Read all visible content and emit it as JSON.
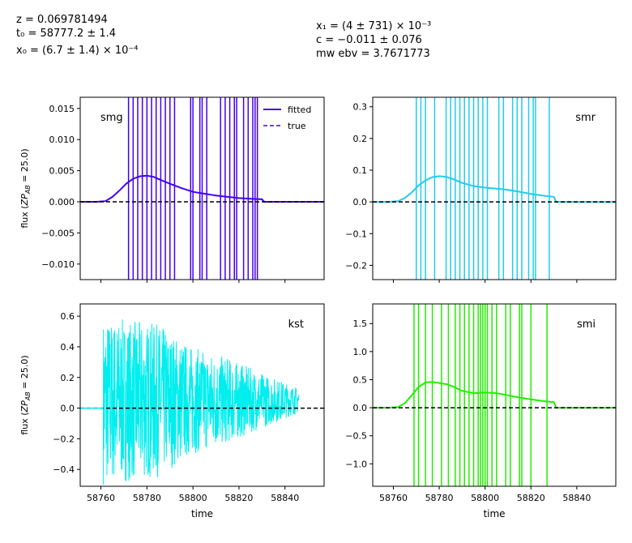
{
  "header": {
    "left": [
      "z = 0.069781494",
      "t₀ = 58777.2 ± 1.4",
      "x₀ = (6.7 ± 1.4) × 10⁻⁴"
    ],
    "right": [
      "x₁ = (4 ± 731) × 10⁻³",
      "c = −0.011 ± 0.076",
      "mw ebv = 3.7671773"
    ]
  },
  "chart_data": [
    {
      "type": "line",
      "band": "smg",
      "color": "#4400ee",
      "xlim": [
        58751,
        58857
      ],
      "ylim": [
        -0.0125,
        0.0168
      ],
      "xticks": [
        58760,
        58780,
        58800,
        58820,
        58840
      ],
      "yticks": [
        -0.01,
        -0.005,
        0.0,
        0.005,
        0.01,
        0.015
      ],
      "ytick_labels": [
        "−0.010",
        "−0.005",
        "0.000",
        "0.005",
        "0.010",
        "0.015"
      ],
      "ylabel": "flux (ZP_AB = 25.0)",
      "xlabel": "",
      "legend": [
        "fitted",
        "true"
      ],
      "legend_loc": "upper right",
      "band_label_loc": "upper left",
      "x_labels_shown": false,
      "model_x": [
        58751,
        58758,
        58762,
        58765,
        58768,
        58771,
        58774,
        58777,
        58780,
        58783,
        58786,
        58790,
        58795,
        58800,
        58805,
        58810,
        58815,
        58820,
        58825,
        58830,
        58831,
        58857
      ],
      "model_y": [
        0,
        0,
        0.0001,
        0.0008,
        0.0018,
        0.0029,
        0.0037,
        0.0041,
        0.0042,
        0.004,
        0.0035,
        0.0029,
        0.0022,
        0.0016,
        0.0013,
        0.001,
        0.0008,
        0.0006,
        0.0005,
        0.0004,
        0,
        0
      ],
      "error_bars_x": [
        58772,
        58774,
        58776,
        58778,
        58780,
        58782,
        58784,
        58786,
        58788,
        58790,
        58792,
        58799,
        58800,
        58803,
        58804,
        58806,
        58812,
        58814,
        58816,
        58818,
        58819,
        58822,
        58824,
        58826,
        58827,
        58828
      ]
    },
    {
      "type": "line",
      "band": "smr",
      "color": "#22ccee",
      "xlim": [
        58751,
        58857
      ],
      "ylim": [
        -0.245,
        0.33
      ],
      "xticks": [
        58760,
        58780,
        58800,
        58820,
        58840
      ],
      "yticks": [
        -0.2,
        -0.1,
        0.0,
        0.1,
        0.2,
        0.3
      ],
      "ytick_labels": [
        "−0.2",
        "−0.1",
        "0.0",
        "0.1",
        "0.2",
        "0.3"
      ],
      "ylabel": "",
      "xlabel": "",
      "band_label_loc": "upper right",
      "x_labels_shown": false,
      "model_x": [
        58751,
        58758,
        58762,
        58765,
        58768,
        58771,
        58774,
        58777,
        58780,
        58783,
        58786,
        58790,
        58795,
        58800,
        58805,
        58810,
        58815,
        58820,
        58825,
        58830,
        58831,
        58857
      ],
      "model_y": [
        0,
        0,
        0.002,
        0.012,
        0.03,
        0.052,
        0.068,
        0.078,
        0.081,
        0.079,
        0.072,
        0.06,
        0.05,
        0.045,
        0.042,
        0.038,
        0.032,
        0.025,
        0.02,
        0.016,
        0,
        0
      ],
      "error_bars_x": [
        58770,
        58772,
        58774,
        58778,
        58783,
        58785,
        58787,
        58789,
        58791,
        58793,
        58795,
        58797,
        58799,
        58801,
        58806,
        58808,
        58812,
        58814,
        58816,
        58819,
        58821,
        58822,
        58828
      ]
    },
    {
      "type": "line",
      "band": "kst",
      "color": "#00eeee",
      "xlim": [
        58751,
        58857
      ],
      "ylim": [
        -0.51,
        0.68
      ],
      "xticks": [
        58760,
        58780,
        58800,
        58820,
        58840
      ],
      "yticks": [
        -0.4,
        -0.2,
        0.0,
        0.2,
        0.4,
        0.6
      ],
      "ytick_labels": [
        "−0.4",
        "−0.2",
        "0.0",
        "0.2",
        "0.4",
        "0.6"
      ],
      "ylabel": "flux (ZP_AB = 25.0)",
      "xlabel": "time",
      "band_label_loc": "upper right",
      "x_labels_shown": true,
      "noise_range_x": [
        58761,
        58846
      ],
      "noise_amplitude": [
        [
          58761,
          0.55
        ],
        [
          58785,
          0.5
        ],
        [
          58800,
          0.35
        ],
        [
          58815,
          0.28
        ],
        [
          58830,
          0.18
        ],
        [
          58846,
          0.08
        ]
      ]
    },
    {
      "type": "line",
      "band": "smi",
      "color": "#22ee00",
      "xlim": [
        58751,
        58857
      ],
      "ylim": [
        -1.4,
        1.85
      ],
      "xticks": [
        58760,
        58780,
        58800,
        58820,
        58840
      ],
      "yticks": [
        -1.0,
        -0.5,
        0.0,
        0.5,
        1.0,
        1.5
      ],
      "ytick_labels": [
        "−1.0",
        "−0.5",
        "0.0",
        "0.5",
        "1.0",
        "1.5"
      ],
      "ylabel": "",
      "xlabel": "time",
      "band_label_loc": "upper right",
      "x_labels_shown": true,
      "model_x": [
        58751,
        58758,
        58762,
        58765,
        58768,
        58771,
        58774,
        58777,
        58780,
        58783,
        58786,
        58790,
        58795,
        58800,
        58805,
        58810,
        58815,
        58820,
        58825,
        58830,
        58831,
        58857
      ],
      "model_y": [
        0,
        0,
        0.01,
        0.08,
        0.22,
        0.37,
        0.45,
        0.46,
        0.44,
        0.42,
        0.38,
        0.3,
        0.26,
        0.27,
        0.26,
        0.22,
        0.18,
        0.15,
        0.12,
        0.1,
        0,
        0
      ],
      "error_bars_x": [
        58769,
        58771,
        58774,
        58777,
        58781,
        58784,
        58787,
        58789,
        58791,
        58793,
        58795,
        58797,
        58798,
        58799,
        58800,
        58801,
        58803,
        58805,
        58809,
        58811,
        58815,
        58816,
        58820,
        58827
      ]
    }
  ]
}
